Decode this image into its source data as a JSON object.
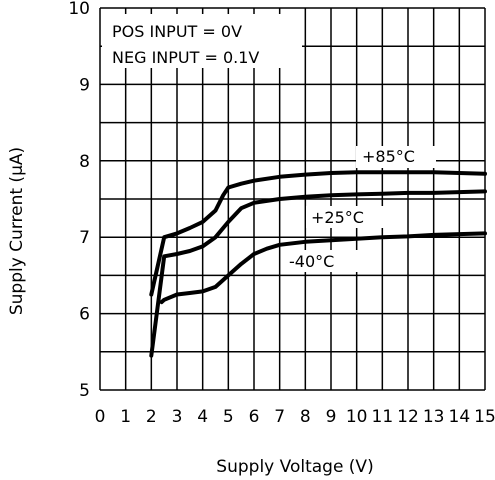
{
  "chart_data": {
    "type": "line",
    "xlabel": "Supply Voltage (V)",
    "ylabel": "Supply Current (μA)",
    "xlim": [
      0,
      15
    ],
    "ylim": [
      5,
      10
    ],
    "xticks": [
      "0",
      "1",
      "2",
      "3",
      "4",
      "5",
      "6",
      "7",
      "8",
      "9",
      "10",
      "11",
      "12",
      "13",
      "14",
      "15"
    ],
    "yticks": [
      "5",
      "6",
      "7",
      "8",
      "9",
      "10"
    ],
    "grid": true,
    "annotations": [
      "POS INPUT = 0V",
      "NEG INPUT = 0.1V"
    ],
    "series": [
      {
        "name": "+85°C",
        "x": [
          2.0,
          2.5,
          3.0,
          3.5,
          4.0,
          4.5,
          4.8,
          5.0,
          5.5,
          6.0,
          7.0,
          8.0,
          9.0,
          10.0,
          11.0,
          12.0,
          13.0,
          14.0,
          15.0
        ],
        "y": [
          6.25,
          7.0,
          7.05,
          7.12,
          7.2,
          7.35,
          7.55,
          7.65,
          7.7,
          7.74,
          7.79,
          7.82,
          7.84,
          7.85,
          7.85,
          7.85,
          7.85,
          7.84,
          7.83
        ]
      },
      {
        "name": "+25°C",
        "x": [
          2.0,
          2.5,
          3.0,
          3.5,
          4.0,
          4.5,
          5.0,
          5.5,
          6.0,
          7.0,
          8.0,
          9.0,
          10.0,
          11.0,
          12.0,
          13.0,
          14.0,
          15.0
        ],
        "y": [
          5.45,
          6.75,
          6.78,
          6.82,
          6.88,
          7.0,
          7.2,
          7.38,
          7.45,
          7.5,
          7.53,
          7.55,
          7.56,
          7.57,
          7.58,
          7.58,
          7.59,
          7.6
        ]
      },
      {
        "name": "-40°C",
        "x": [
          2.4,
          2.5,
          3.0,
          3.5,
          4.0,
          4.5,
          5.0,
          5.5,
          6.0,
          6.5,
          7.0,
          8.0,
          9.0,
          10.0,
          11.0,
          12.0,
          13.0,
          14.0,
          15.0
        ],
        "y": [
          6.15,
          6.18,
          6.25,
          6.27,
          6.29,
          6.35,
          6.5,
          6.65,
          6.78,
          6.85,
          6.9,
          6.94,
          6.96,
          6.98,
          7.0,
          7.01,
          7.03,
          7.04,
          7.05
        ]
      }
    ]
  }
}
